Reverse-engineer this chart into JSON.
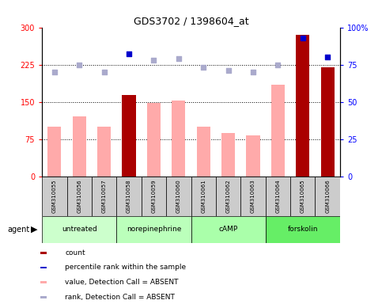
{
  "title": "GDS3702 / 1398604_at",
  "samples": [
    "GSM310055",
    "GSM310056",
    "GSM310057",
    "GSM310058",
    "GSM310059",
    "GSM310060",
    "GSM310061",
    "GSM310062",
    "GSM310063",
    "GSM310064",
    "GSM310065",
    "GSM310066"
  ],
  "groups": [
    {
      "label": "untreated",
      "indices": [
        0,
        1,
        2
      ],
      "color": "#ccffcc"
    },
    {
      "label": "norepinephrine",
      "indices": [
        3,
        4,
        5
      ],
      "color": "#bbffbb"
    },
    {
      "label": "cAMP",
      "indices": [
        6,
        7,
        8
      ],
      "color": "#aaffaa"
    },
    {
      "label": "forskolin",
      "indices": [
        9,
        10,
        11
      ],
      "color": "#66ee66"
    }
  ],
  "bar_values": [
    100,
    120,
    100,
    163,
    148,
    152,
    100,
    88,
    83,
    185,
    285,
    220
  ],
  "bar_is_dark": [
    false,
    false,
    false,
    true,
    false,
    false,
    false,
    false,
    false,
    false,
    true,
    true
  ],
  "dot_pct": [
    70,
    75,
    70,
    82,
    78,
    79,
    73,
    71,
    70,
    75,
    93,
    80
  ],
  "dot_is_dark": [
    false,
    false,
    false,
    true,
    false,
    false,
    false,
    false,
    false,
    false,
    true,
    true
  ],
  "ylim_left": [
    0,
    300
  ],
  "ylim_right": [
    0,
    100
  ],
  "yticks_left": [
    0,
    75,
    150,
    225,
    300
  ],
  "yticks_right": [
    0,
    25,
    50,
    75,
    100
  ],
  "ytick_labels_right": [
    "0",
    "25",
    "50",
    "75",
    "100%"
  ],
  "hlines": [
    75,
    150,
    225
  ],
  "dark_bar_color": "#aa0000",
  "light_bar_color": "#ffaaaa",
  "dark_dot_color": "#0000cc",
  "light_dot_color": "#aaaacc",
  "sample_box_color": "#cccccc",
  "legend_items": [
    {
      "color": "#aa0000",
      "label": "count"
    },
    {
      "color": "#0000cc",
      "label": "percentile rank within the sample"
    },
    {
      "color": "#ffaaaa",
      "label": "value, Detection Call = ABSENT"
    },
    {
      "color": "#aaaacc",
      "label": "rank, Detection Call = ABSENT"
    }
  ]
}
